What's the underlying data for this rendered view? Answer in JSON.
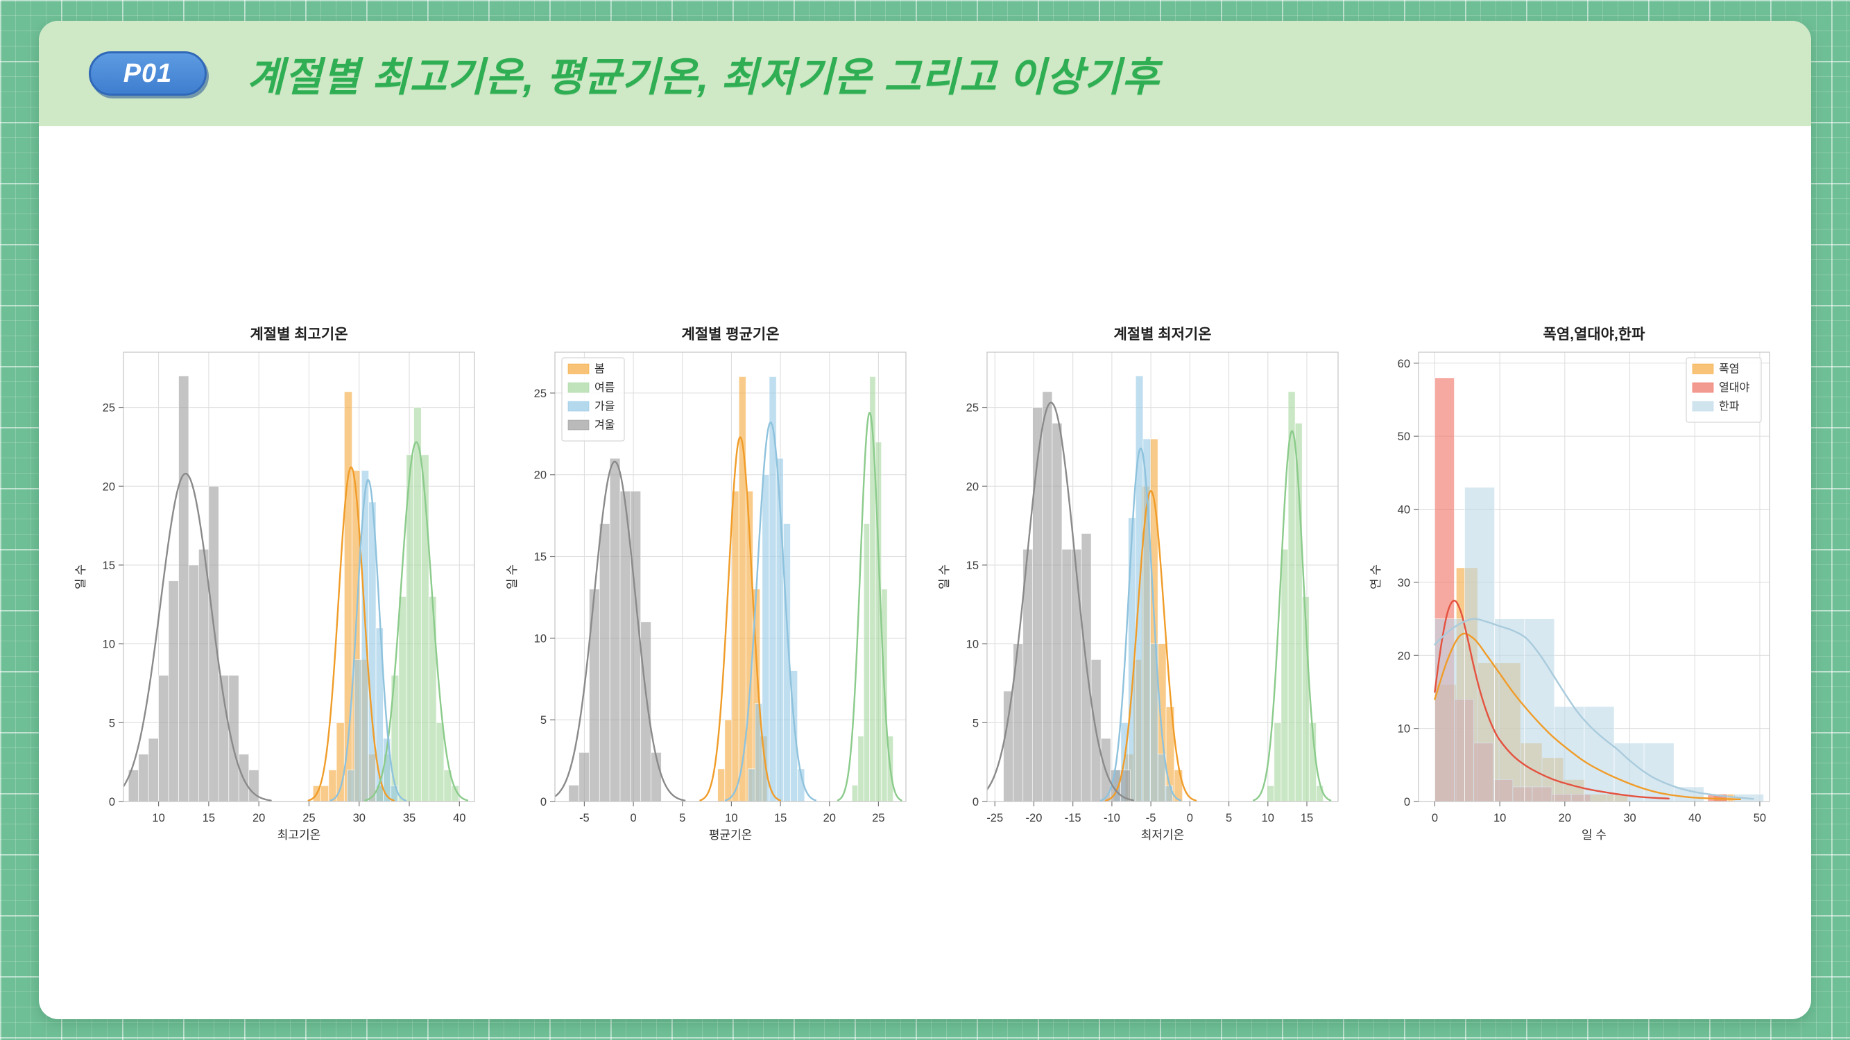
{
  "header": {
    "badge": "P01",
    "title": "계절별 최고기온, 평균기온, 최저기온 그리고 이상기후"
  },
  "colors": {
    "page_bg": "#6fbf96",
    "header_bg": "#cfe8c5",
    "title_green": "#2fae53",
    "badge_blue": "#3f7ecf",
    "grid": "#dcdcdc",
    "spine": "#c8c8c8"
  },
  "chart_data": [
    {
      "type": "histogram",
      "title": "계절별 최고기온",
      "xlabel": "최고기온",
      "ylabel": "일 수",
      "xlim": [
        6.5,
        41.5
      ],
      "ylim": [
        0,
        28.5
      ],
      "xticks": [
        10,
        15,
        20,
        25,
        30,
        35,
        40
      ],
      "yticks": [
        0,
        5,
        10,
        15,
        20,
        25
      ],
      "grid": true,
      "legend": null,
      "series": [
        {
          "name": "봄",
          "color": "#f5a93c",
          "line_color": "#f09c28",
          "bin_start": 25.4,
          "bin_width": 0.78,
          "counts": [
            1,
            1,
            2,
            5,
            26,
            21,
            9,
            3,
            1
          ],
          "kde": {
            "mean": 29.2,
            "std": 1.25,
            "peak": 21.2
          }
        },
        {
          "name": "여름",
          "color": "#a6d79f",
          "line_color": "#8bcb8b",
          "bin_start": 31.7,
          "bin_width": 0.75,
          "counts": [
            1,
            3,
            8,
            13,
            22,
            25,
            22,
            13,
            5,
            2,
            1
          ],
          "kde": {
            "mean": 35.7,
            "std": 1.5,
            "peak": 22.8
          }
        },
        {
          "name": "가을",
          "color": "#94c8e4",
          "line_color": "#8ec2dd",
          "bin_start": 28.8,
          "bin_width": 0.72,
          "counts": [
            2,
            9,
            21,
            19,
            11,
            4,
            1
          ],
          "kde": {
            "mean": 30.9,
            "std": 1.1,
            "peak": 20.4
          }
        },
        {
          "name": "겨울",
          "color": "#9d9d9d",
          "line_color": "#8a8a8a",
          "bin_start": 7,
          "bin_width": 1,
          "counts": [
            2,
            3,
            4,
            8,
            14,
            27,
            15,
            16,
            20,
            8,
            8,
            3,
            2
          ],
          "kde": {
            "mean": 12.7,
            "std": 2.5,
            "peak": 20.8
          }
        }
      ]
    },
    {
      "type": "histogram",
      "title": "계절별 평균기온",
      "xlabel": "평균기온",
      "ylabel": "일 수",
      "xlim": [
        -8,
        27.8
      ],
      "ylim": [
        0,
        27.5
      ],
      "xticks": [
        -5,
        0,
        5,
        10,
        15,
        20,
        25
      ],
      "yticks": [
        0,
        5,
        10,
        15,
        20,
        25
      ],
      "grid": true,
      "legend": {
        "position": "upper-left"
      },
      "series": [
        {
          "name": "봄",
          "color": "#f5a93c",
          "line_color": "#f09c28",
          "bin_start": 8.6,
          "bin_width": 0.72,
          "counts": [
            2,
            5,
            19,
            26,
            19,
            13,
            4
          ],
          "kde": {
            "mean": 10.9,
            "std": 1.2,
            "peak": 22.3
          }
        },
        {
          "name": "여름",
          "color": "#a6d79f",
          "line_color": "#8bcb8b",
          "bin_start": 22.3,
          "bin_width": 0.6,
          "counts": [
            1,
            4,
            17,
            26,
            22,
            13,
            4
          ],
          "kde": {
            "mean": 24.1,
            "std": 0.95,
            "peak": 23.8
          }
        },
        {
          "name": "가을",
          "color": "#94c8e4",
          "line_color": "#8ec2dd",
          "bin_start": 11.7,
          "bin_width": 0.72,
          "counts": [
            2,
            6,
            20,
            26,
            21,
            17,
            8,
            2
          ],
          "kde": {
            "mean": 14.0,
            "std": 1.35,
            "peak": 23.2
          }
        },
        {
          "name": "겨울",
          "color": "#9d9d9d",
          "line_color": "#8a8a8a",
          "bin_start": -6.6,
          "bin_width": 1.05,
          "counts": [
            1,
            3,
            13,
            17,
            21,
            19,
            19,
            11,
            3
          ],
          "kde": {
            "mean": -1.9,
            "std": 2.1,
            "peak": 20.8
          }
        }
      ]
    },
    {
      "type": "histogram",
      "title": "계절별 최저기온",
      "xlabel": "최저기온",
      "ylabel": "일 수",
      "xlim": [
        -26,
        19
      ],
      "ylim": [
        0,
        28.5
      ],
      "xticks": [
        -25,
        -20,
        -15,
        -10,
        -5,
        0,
        5,
        10,
        15
      ],
      "yticks": [
        0,
        5,
        10,
        15,
        20,
        25
      ],
      "grid": true,
      "legend": null,
      "series": [
        {
          "name": "봄",
          "color": "#f5a93c",
          "line_color": "#f09c28",
          "bin_start": -8.3,
          "bin_width": 1.05,
          "counts": [
            3,
            9,
            20,
            23,
            10,
            6,
            2
          ],
          "kde": {
            "mean": -5.0,
            "std": 1.7,
            "peak": 19.7
          }
        },
        {
          "name": "여름",
          "color": "#a6d79f",
          "line_color": "#8bcb8b",
          "bin_start": 9.9,
          "bin_width": 0.9,
          "counts": [
            1,
            5,
            16,
            26,
            24,
            13,
            5,
            1
          ],
          "kde": {
            "mean": 13.1,
            "std": 1.45,
            "peak": 23.5
          }
        },
        {
          "name": "가을",
          "color": "#94c8e4",
          "line_color": "#8ec2dd",
          "bin_start": -9.8,
          "bin_width": 0.95,
          "counts": [
            2,
            5,
            18,
            27,
            23,
            10,
            3,
            1
          ],
          "kde": {
            "mean": -6.3,
            "std": 1.5,
            "peak": 22.4
          }
        },
        {
          "name": "겨울",
          "color": "#9d9d9d",
          "line_color": "#8a8a8a",
          "bin_start": -23.9,
          "bin_width": 1.25,
          "counts": [
            7,
            10,
            16,
            25,
            26,
            24,
            16,
            16,
            17,
            9,
            4,
            2,
            2
          ],
          "kde": {
            "mean": -17.8,
            "std": 3.1,
            "peak": 25.3
          }
        }
      ]
    },
    {
      "type": "histogram",
      "title": "폭염,열대야,한파",
      "xlabel": "일 수",
      "ylabel": "연 수",
      "xlim": [
        -2.5,
        51.5
      ],
      "ylim": [
        0,
        61.5
      ],
      "xticks": [
        0,
        10,
        20,
        30,
        40,
        50
      ],
      "yticks": [
        0,
        10,
        20,
        30,
        40,
        50,
        60
      ],
      "grid": true,
      "legend": {
        "position": "upper-right"
      },
      "series": [
        {
          "name": "폭염",
          "color": "#f5a93c",
          "line_color": "#f09c28",
          "bin_start": 0,
          "bin_width": 3.3,
          "counts": [
            16,
            32,
            19,
            19,
            8,
            6,
            3,
            1,
            1,
            0,
            0,
            0,
            0,
            1
          ],
          "kde": {
            "points": [
              [
                0,
                14
              ],
              [
                2,
                19.5
              ],
              [
                4,
                22.8
              ],
              [
                6,
                22.3
              ],
              [
                8,
                20
              ],
              [
                10,
                17.5
              ],
              [
                12,
                15
              ],
              [
                14,
                12.8
              ],
              [
                16,
                10.8
              ],
              [
                18,
                9
              ],
              [
                20,
                7.5
              ],
              [
                23,
                5.5
              ],
              [
                26,
                4
              ],
              [
                29,
                2.8
              ],
              [
                32,
                1.8
              ],
              [
                35,
                1.1
              ],
              [
                39,
                0.6
              ],
              [
                43,
                0.4
              ],
              [
                47,
                0.3
              ]
            ]
          }
        },
        {
          "name": "열대야",
          "color": "#ee6f61",
          "line_color": "#e4523f",
          "bin_start": 0,
          "bin_width": 3.0,
          "counts": [
            58,
            14,
            8,
            3,
            2,
            2,
            1,
            1,
            0,
            0,
            0,
            0,
            0,
            0,
            1
          ],
          "kde": {
            "points": [
              [
                0,
                15
              ],
              [
                1,
                21.5
              ],
              [
                2,
                26
              ],
              [
                3,
                27.5
              ],
              [
                4,
                26
              ],
              [
                5,
                22.5
              ],
              [
                6,
                18.5
              ],
              [
                7,
                15
              ],
              [
                8,
                12.2
              ],
              [
                9,
                10
              ],
              [
                10,
                8.4
              ],
              [
                12,
                6.3
              ],
              [
                14,
                4.9
              ],
              [
                16,
                3.9
              ],
              [
                18,
                3.1
              ],
              [
                20,
                2.5
              ],
              [
                23,
                1.8
              ],
              [
                26,
                1.3
              ],
              [
                29,
                0.9
              ],
              [
                32,
                0.6
              ],
              [
                36,
                0.4
              ]
            ]
          }
        },
        {
          "name": "한파",
          "color": "#bcd9e7",
          "line_color": "#a9cbdc",
          "bin_start": 0,
          "bin_width": 4.6,
          "counts": [
            25,
            43,
            25,
            25,
            13,
            13,
            8,
            8,
            2,
            0,
            1
          ],
          "kde": {
            "points": [
              [
                0,
                21.5
              ],
              [
                2,
                23.2
              ],
              [
                4,
                24.4
              ],
              [
                6,
                25
              ],
              [
                8,
                24.6
              ],
              [
                10,
                24
              ],
              [
                12,
                23.4
              ],
              [
                14,
                22.4
              ],
              [
                16,
                20.3
              ],
              [
                18,
                17.6
              ],
              [
                20,
                14.8
              ],
              [
                22,
                12.2
              ],
              [
                24,
                10.2
              ],
              [
                26,
                8.6
              ],
              [
                28,
                7.2
              ],
              [
                30,
                5.6
              ],
              [
                32,
                4.2
              ],
              [
                34,
                3.1
              ],
              [
                37,
                2
              ],
              [
                40,
                1.3
              ],
              [
                43,
                0.9
              ],
              [
                46,
                0.6
              ],
              [
                49,
                0.35
              ]
            ]
          }
        }
      ]
    }
  ]
}
